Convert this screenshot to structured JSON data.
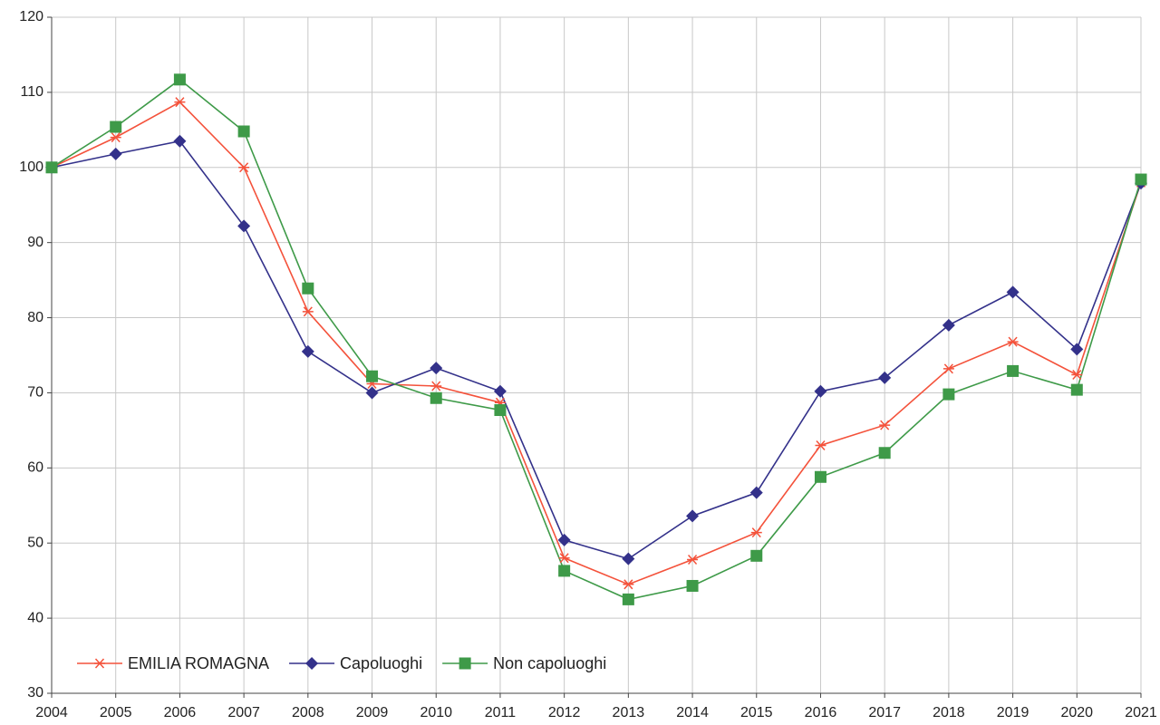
{
  "chart_data": {
    "type": "line",
    "x": [
      2004,
      2005,
      2006,
      2007,
      2008,
      2009,
      2010,
      2011,
      2012,
      2013,
      2014,
      2015,
      2016,
      2017,
      2018,
      2019,
      2020,
      2021
    ],
    "series": [
      {
        "name": "EMILIA ROMAGNA",
        "color": "#f4523b",
        "marker": "asterisk",
        "values": [
          100,
          104,
          108.7,
          100,
          80.8,
          71.2,
          70.9,
          68.7,
          48,
          44.5,
          47.8,
          51.4,
          63,
          65.7,
          73.2,
          76.8,
          72.4,
          98
        ]
      },
      {
        "name": "Capoluoghi",
        "color": "#33318a",
        "marker": "diamond",
        "values": [
          100,
          101.8,
          103.5,
          92.2,
          75.5,
          70,
          73.3,
          70.2,
          50.4,
          47.9,
          53.6,
          56.7,
          70.2,
          72,
          79,
          83.4,
          75.8,
          97.9
        ]
      },
      {
        "name": "Non capoluoghi",
        "color": "#3e9a48",
        "marker": "square",
        "values": [
          100,
          105.4,
          111.7,
          104.8,
          83.9,
          72.2,
          69.3,
          67.7,
          46.3,
          42.5,
          44.3,
          48.3,
          58.8,
          62,
          69.8,
          72.9,
          70.4,
          98.4
        ]
      }
    ],
    "xlim": [
      2004,
      2021
    ],
    "xticks": [
      2004,
      2005,
      2006,
      2007,
      2008,
      2009,
      2010,
      2011,
      2012,
      2013,
      2014,
      2015,
      2016,
      2017,
      2018,
      2019,
      2020,
      2021
    ],
    "ylim": [
      30,
      120
    ],
    "yticks": [
      30,
      40,
      50,
      60,
      70,
      80,
      90,
      100,
      110,
      120
    ],
    "grid": true,
    "legend": "bottom-left"
  }
}
